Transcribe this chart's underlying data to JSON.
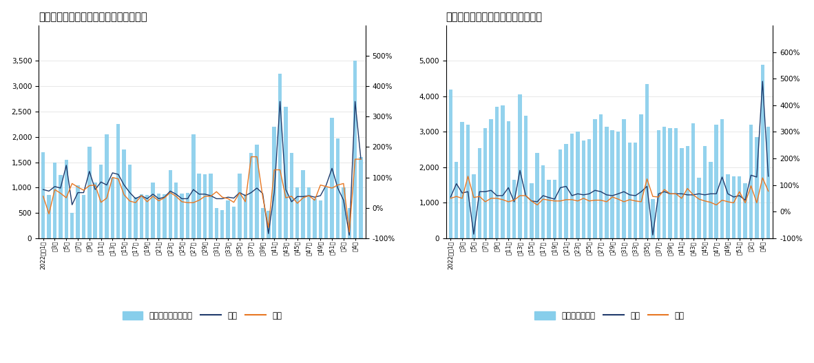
{
  "chart1_title": "北京新建商品住宅周度成交套数及同环比",
  "chart2_title": "北京二手住宅周度成交套数及同环比",
  "chart1_bars": [
    1700,
    850,
    1500,
    1250,
    1550,
    500,
    1050,
    850,
    1800,
    1100,
    1450,
    2050,
    1200,
    2250,
    1750,
    1450,
    820,
    870,
    850,
    1100,
    880,
    870,
    1350,
    1100,
    880,
    890,
    2050,
    1280,
    1260,
    1280,
    600,
    560,
    750,
    620,
    1270,
    870,
    1680,
    1850,
    590,
    540,
    2200,
    3250,
    2600,
    1680,
    1000,
    1340,
    1000,
    780,
    750,
    1000,
    2380,
    1970,
    1000,
    600,
    3500,
    1600
  ],
  "chart1_huanbi": [
    60,
    55,
    70,
    65,
    140,
    10,
    50,
    50,
    120,
    60,
    85,
    75,
    115,
    110,
    75,
    50,
    30,
    40,
    30,
    45,
    30,
    35,
    55,
    45,
    30,
    30,
    60,
    45,
    45,
    40,
    30,
    30,
    35,
    32,
    50,
    40,
    50,
    65,
    47,
    -85,
    50,
    350,
    60,
    20,
    37,
    37,
    40,
    35,
    40,
    75,
    130,
    65,
    25,
    -90,
    350,
    160
  ],
  "chart1_tongbi": [
    38,
    -20,
    60,
    48,
    33,
    80,
    68,
    58,
    73,
    75,
    18,
    32,
    100,
    95,
    43,
    22,
    17,
    40,
    20,
    38,
    23,
    33,
    50,
    38,
    20,
    17,
    17,
    25,
    38,
    38,
    53,
    35,
    30,
    18,
    50,
    20,
    168,
    168,
    37,
    -65,
    125,
    125,
    33,
    38,
    15,
    33,
    40,
    25,
    75,
    70,
    65,
    75,
    80,
    -80,
    160,
    160
  ],
  "chart2_bars": [
    4200,
    2150,
    3280,
    3200,
    1800,
    2550,
    3100,
    3350,
    3700,
    3750,
    3300,
    1650,
    4050,
    3450,
    1550,
    2400,
    2050,
    1650,
    1650,
    2500,
    2650,
    2950,
    3000,
    2750,
    2800,
    3350,
    3500,
    3150,
    3050,
    3000,
    3350,
    2700,
    2700,
    3500,
    4350,
    1100,
    3050,
    3150,
    3100,
    3100,
    2550,
    2600,
    3250,
    1700,
    2600,
    2150,
    3200,
    3350,
    1800,
    1750,
    1750,
    1550,
    3200,
    2850,
    4900,
    3150
  ],
  "chart2_huanbi": [
    55,
    105,
    70,
    75,
    -85,
    75,
    75,
    80,
    60,
    60,
    90,
    37,
    155,
    60,
    40,
    37,
    60,
    53,
    47,
    90,
    95,
    60,
    67,
    63,
    67,
    80,
    75,
    63,
    60,
    67,
    75,
    63,
    60,
    75,
    95,
    -88,
    67,
    75,
    67,
    67,
    67,
    63,
    63,
    67,
    63,
    67,
    67,
    130,
    67,
    55,
    60,
    43,
    137,
    130,
    490,
    133
  ],
  "chart2_tongbi": [
    50,
    57,
    50,
    133,
    53,
    57,
    37,
    50,
    50,
    45,
    37,
    43,
    60,
    60,
    40,
    25,
    47,
    43,
    40,
    40,
    45,
    45,
    40,
    50,
    40,
    43,
    43,
    37,
    55,
    47,
    37,
    45,
    40,
    37,
    123,
    57,
    55,
    83,
    67,
    67,
    50,
    87,
    63,
    47,
    40,
    35,
    25,
    43,
    37,
    33,
    75,
    33,
    97,
    33,
    127,
    77
  ],
  "bar_color": "#87CEEB",
  "huanbi_color": "#1F3A6B",
  "tongbi_color": "#E87722",
  "background_color": "#FFFFFF",
  "legend1_bar": "新建商品住宅（套）",
  "legend1_hb": "环比",
  "legend1_tb": "同比",
  "legend2_bar": "二手住宅（套）",
  "legend2_hb": "环比",
  "legend2_tb": "同比"
}
